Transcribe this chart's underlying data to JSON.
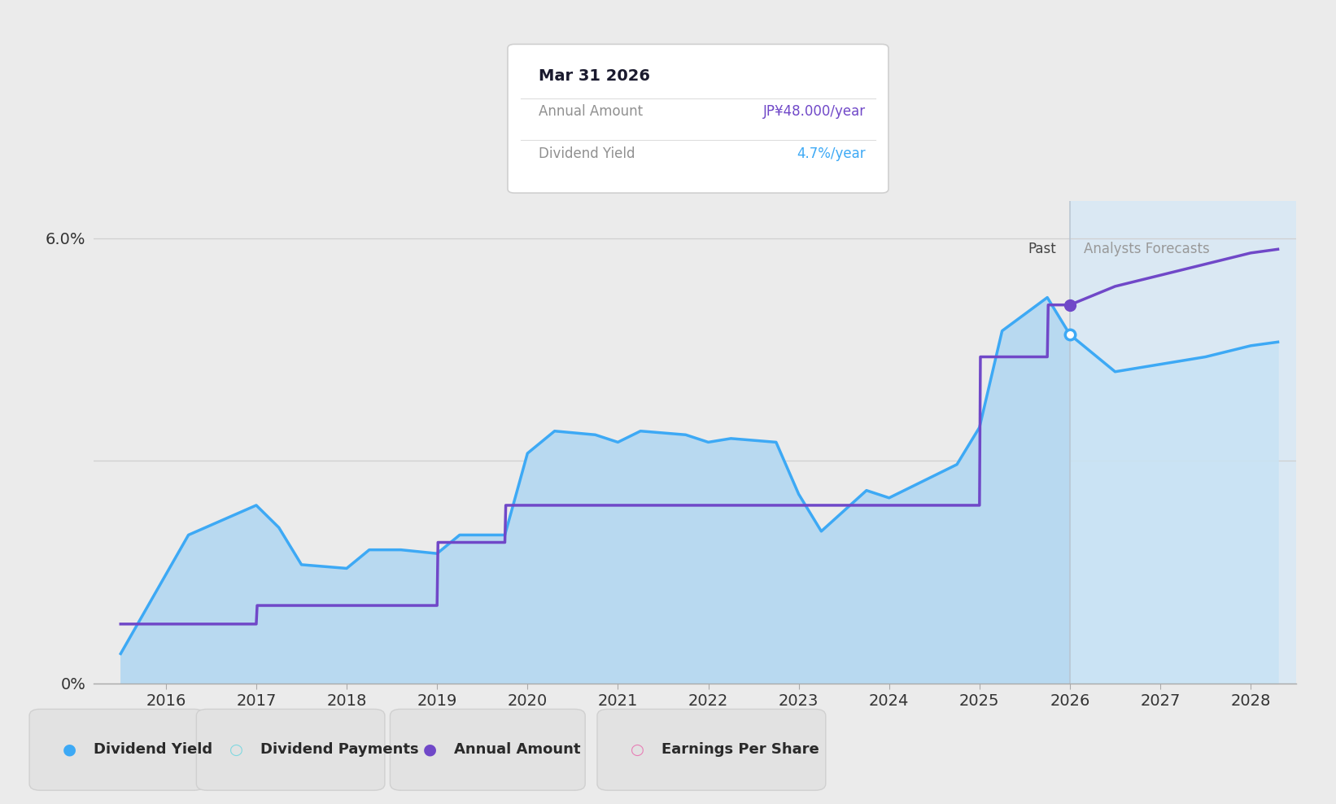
{
  "background_color": "#ebebeb",
  "plot_bg_color": "#ebebeb",
  "years_past": [
    2015.5,
    2016.25,
    2017.0,
    2017.25,
    2017.5,
    2018.0,
    2018.25,
    2018.6,
    2019.0,
    2019.25,
    2019.75,
    2020.0,
    2020.3,
    2020.75,
    2021.0,
    2021.25,
    2021.75,
    2022.0,
    2022.25,
    2022.75,
    2023.0,
    2023.25,
    2023.75,
    2024.0,
    2024.25,
    2024.75,
    2025.0,
    2025.25,
    2025.75,
    2026.0
  ],
  "div_yield_past": [
    0.4,
    2.0,
    2.4,
    2.1,
    1.6,
    1.55,
    1.8,
    1.8,
    1.75,
    2.0,
    2.0,
    3.1,
    3.4,
    3.35,
    3.25,
    3.4,
    3.35,
    3.25,
    3.3,
    3.25,
    2.55,
    2.05,
    2.6,
    2.5,
    2.65,
    2.95,
    3.45,
    4.75,
    5.2,
    4.7
  ],
  "years_forecast": [
    2026.0,
    2026.5,
    2027.0,
    2027.5,
    2028.0,
    2028.3
  ],
  "div_yield_forecast": [
    4.7,
    4.2,
    4.3,
    4.4,
    4.55,
    4.6
  ],
  "annual_past_x": [
    2015.5,
    2016.0,
    2016.5,
    2017.0,
    2017.01,
    2018.0,
    2018.01,
    2019.0,
    2019.01,
    2019.75,
    2019.76,
    2022.75,
    2022.76,
    2024.75,
    2024.76,
    2025.0,
    2025.01,
    2025.75,
    2025.76,
    2026.0
  ],
  "annual_past_y": [
    0.8,
    0.8,
    0.8,
    0.8,
    1.05,
    1.05,
    1.05,
    1.05,
    1.9,
    1.9,
    2.4,
    2.4,
    2.4,
    2.4,
    2.4,
    2.4,
    4.4,
    4.4,
    5.1,
    5.1
  ],
  "annual_forecast_x": [
    2026.0,
    2026.5,
    2027.0,
    2027.5,
    2028.0,
    2028.3
  ],
  "annual_forecast_y": [
    5.1,
    5.35,
    5.5,
    5.65,
    5.8,
    5.85
  ],
  "forecast_start": 2026.0,
  "marker_yield_x": 2026.0,
  "marker_yield_y": 4.7,
  "marker_annual_x": 2026.0,
  "marker_annual_y": 5.1,
  "tooltip_title": "Mar 31 2026",
  "tooltip_label1": "Annual Amount",
  "tooltip_val1": "JP¥48.000/year",
  "tooltip_label2": "Dividend Yield",
  "tooltip_val2": "4.7%/year",
  "ylim": [
    0,
    6.5
  ],
  "xlim_left": 2015.2,
  "xlim_right": 2028.5,
  "xlabel_years": [
    2016,
    2017,
    2018,
    2019,
    2020,
    2021,
    2022,
    2023,
    2024,
    2025,
    2026,
    2027,
    2028
  ],
  "label_past": "Past",
  "label_forecast": "Analysts Forecasts",
  "div_yield_color": "#3da9f5",
  "div_yield_fill_past": "#b8d9f0",
  "div_yield_fill_forecast": "#c8e3f5",
  "annual_color": "#7048c8",
  "forecast_bg_color": "#d8e8f5",
  "grid_color": "#d0d0d0",
  "vline_color": "#b8c4d0",
  "legend_bg": "#e2e2e2",
  "legend_border": "#d0d0d0",
  "tooltip_bg": "#ffffff",
  "tooltip_border": "#d0d0d0",
  "tooltip_title_color": "#1a1a2e",
  "tooltip_label_color": "#909090",
  "tooltip_annual_val_color": "#7048c8",
  "tooltip_yield_val_color": "#3da9f5",
  "past_label_color": "#444444",
  "forecast_label_color": "#999999"
}
